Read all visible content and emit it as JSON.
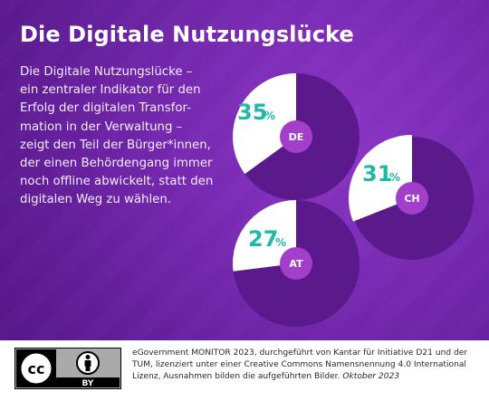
{
  "title": "Die Digitale Nutzungslücke",
  "description_lines": [
    "Die Digitale Nutzungslücke –",
    "ein zentraler Indikator für den",
    "Erfolg der digitalen Transfor-",
    "mation in der Verwaltung –",
    "zeigt den Teil der Bürger*innen,",
    "der einen Behördengang immer",
    "noch offline abwickelt, statt den",
    "digitalen Weg zu wählen."
  ],
  "chart_data": {
    "type": "pie",
    "unit": "%",
    "items": [
      {
        "label": "DE",
        "value": 35,
        "value_text": "35"
      },
      {
        "label": "CH",
        "value": 31,
        "value_text": "31"
      },
      {
        "label": "AT",
        "value": 27,
        "value_text": "27"
      }
    ]
  },
  "colors": {
    "background": "#6e26a8",
    "slice_highlight": "#ffffff",
    "pie_remainder": "#5a1a8c",
    "center_disc": "#a23ec9",
    "percentage_text": "#1fb9a7"
  },
  "footer": {
    "license_badge_text": "cc",
    "license_by_text": "BY",
    "credit_line1": "eGovernment MONITOR 2023, durchgeführt von Kantar für Initiative D21 und der",
    "credit_line2": "TUM, lizenziert unter einer Creative Commons Namensnennung 4.0 International",
    "credit_line3_prefix": "Lizenz, Ausnahmen bilden die aufgeführten Bilder. ",
    "credit_date": "Oktober 2023"
  }
}
